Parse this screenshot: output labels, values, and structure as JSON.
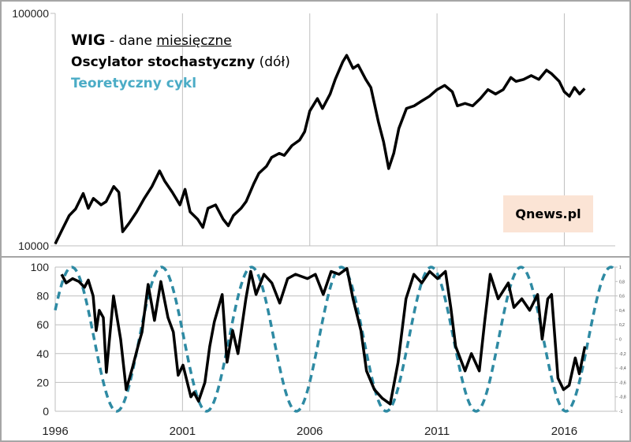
{
  "chart_data": [
    {
      "type": "line",
      "panel": "top",
      "yscale": "log",
      "ylim": [
        10000,
        100000
      ],
      "xlim": [
        1996,
        2018
      ],
      "yticks": [
        "10000",
        "100000"
      ],
      "grid": "vertical",
      "legend": {
        "line1_bold": "WIG",
        "line1_rest": " - dane ",
        "line1_underlined": "miesięczne",
        "line2_bold": "Oscylator stochastyczny",
        "line2_rest": " (dół)",
        "line3": "Teoretyczny cykl"
      },
      "watermark": "Qnews.pl",
      "colors": {
        "wig": "#000000",
        "cycle": "#2e8aa3",
        "cycle_legend": "#4bacc6",
        "watermark_bg": "#fbe4d5"
      },
      "series": [
        {
          "values": [
            [
              1996.0,
              10200
            ],
            [
              1996.3,
              11900
            ],
            [
              1996.55,
              13500
            ],
            [
              1996.8,
              14400
            ],
            [
              1997.1,
              16800
            ],
            [
              1997.3,
              14500
            ],
            [
              1997.5,
              16000
            ],
            [
              1997.8,
              15000
            ],
            [
              1998.0,
              15500
            ],
            [
              1998.3,
              18000
            ],
            [
              1998.5,
              17000
            ],
            [
              1998.65,
              11500
            ],
            [
              1998.9,
              12500
            ],
            [
              1999.2,
              14000
            ],
            [
              1999.5,
              16000
            ],
            [
              1999.8,
              18000
            ],
            [
              2000.1,
              21000
            ],
            [
              2000.3,
              19000
            ],
            [
              2000.6,
              17000
            ],
            [
              2000.9,
              15000
            ],
            [
              2001.1,
              17500
            ],
            [
              2001.3,
              14000
            ],
            [
              2001.6,
              13000
            ],
            [
              2001.8,
              12000
            ],
            [
              2002.0,
              14500
            ],
            [
              2002.3,
              15000
            ],
            [
              2002.6,
              13000
            ],
            [
              2002.8,
              12200
            ],
            [
              2003.0,
              13500
            ],
            [
              2003.3,
              14500
            ],
            [
              2003.5,
              15500
            ],
            [
              2003.8,
              18500
            ],
            [
              2004.0,
              20500
            ],
            [
              2004.3,
              22000
            ],
            [
              2004.5,
              24000
            ],
            [
              2004.8,
              25000
            ],
            [
              2005.0,
              24500
            ],
            [
              2005.3,
              27000
            ],
            [
              2005.6,
              28500
            ],
            [
              2005.8,
              31000
            ],
            [
              2006.0,
              38000
            ],
            [
              2006.3,
              43000
            ],
            [
              2006.5,
              39000
            ],
            [
              2006.8,
              45000
            ],
            [
              2007.0,
              52000
            ],
            [
              2007.3,
              62000
            ],
            [
              2007.45,
              66000
            ],
            [
              2007.7,
              58000
            ],
            [
              2007.9,
              60000
            ],
            [
              2008.2,
              52000
            ],
            [
              2008.4,
              48000
            ],
            [
              2008.7,
              34000
            ],
            [
              2008.9,
              28000
            ],
            [
              2009.1,
              21500
            ],
            [
              2009.3,
              25000
            ],
            [
              2009.5,
              32000
            ],
            [
              2009.8,
              39000
            ],
            [
              2010.1,
              40000
            ],
            [
              2010.4,
              42000
            ],
            [
              2010.7,
              44000
            ],
            [
              2011.0,
              47000
            ],
            [
              2011.3,
              49000
            ],
            [
              2011.6,
              46000
            ],
            [
              2011.8,
              40000
            ],
            [
              2012.1,
              41000
            ],
            [
              2012.4,
              40000
            ],
            [
              2012.7,
              43000
            ],
            [
              2013.0,
              47000
            ],
            [
              2013.3,
              45000
            ],
            [
              2013.6,
              47000
            ],
            [
              2013.9,
              53000
            ],
            [
              2014.1,
              51000
            ],
            [
              2014.4,
              52000
            ],
            [
              2014.7,
              54000
            ],
            [
              2015.0,
              52000
            ],
            [
              2015.3,
              57000
            ],
            [
              2015.5,
              55000
            ],
            [
              2015.8,
              51000
            ],
            [
              2016.0,
              46000
            ],
            [
              2016.2,
              44000
            ],
            [
              2016.4,
              48000
            ],
            [
              2016.6,
              45000
            ],
            [
              2016.8,
              47500
            ]
          ]
        }
      ]
    },
    {
      "type": "line",
      "panel": "bottom",
      "ylim": [
        0,
        100
      ],
      "y2lim": [
        -1,
        1
      ],
      "xlim": [
        1996,
        2018
      ],
      "xticks": [
        "1996",
        "2001",
        "2006",
        "2011",
        "2016"
      ],
      "yticks": [
        "0",
        "20",
        "40",
        "60",
        "80",
        "100"
      ],
      "y2ticks": [
        "-1",
        "-0,8",
        "-0,6",
        "-0,4",
        "-0,2",
        "0",
        "0,2",
        "0,4",
        "0,6",
        "0,8",
        "1"
      ],
      "grid": "both",
      "series": [
        {
          "values": [
            [
              1996.25,
              95
            ],
            [
              1996.43,
              89
            ],
            [
              1996.68,
              92
            ],
            [
              1996.93,
              90
            ],
            [
              1997.15,
              86
            ],
            [
              1997.3,
              91
            ],
            [
              1997.49,
              80
            ],
            [
              1997.61,
              56
            ],
            [
              1997.73,
              70
            ],
            [
              1997.89,
              65
            ],
            [
              1998.01,
              27
            ],
            [
              1998.29,
              80
            ],
            [
              1998.57,
              50
            ],
            [
              1998.79,
              15
            ],
            [
              1999.03,
              30
            ],
            [
              1999.25,
              45
            ],
            [
              1999.41,
              55
            ],
            [
              1999.65,
              88
            ],
            [
              1999.9,
              63
            ],
            [
              2000.15,
              90
            ],
            [
              2000.43,
              65
            ],
            [
              2000.64,
              55
            ],
            [
              2000.83,
              25
            ],
            [
              2001.02,
              32
            ],
            [
              2001.33,
              10
            ],
            [
              2001.45,
              13
            ],
            [
              2001.63,
              7
            ],
            [
              2001.88,
              20
            ],
            [
              2002.07,
              45
            ],
            [
              2002.25,
              62
            ],
            [
              2002.56,
              81
            ],
            [
              2002.75,
              34
            ],
            [
              2002.97,
              56
            ],
            [
              2003.18,
              40
            ],
            [
              2003.49,
              78
            ],
            [
              2003.68,
              97
            ],
            [
              2003.89,
              81
            ],
            [
              2004.2,
              95
            ],
            [
              2004.51,
              89
            ],
            [
              2004.82,
              75
            ],
            [
              2005.13,
              92
            ],
            [
              2005.44,
              95
            ],
            [
              2005.91,
              92
            ],
            [
              2006.22,
              95
            ],
            [
              2006.53,
              81
            ],
            [
              2006.84,
              97
            ],
            [
              2007.15,
              95
            ],
            [
              2007.46,
              99
            ],
            [
              2007.7,
              78
            ],
            [
              2008.01,
              56
            ],
            [
              2008.23,
              28
            ],
            [
              2008.54,
              15
            ],
            [
              2008.85,
              9
            ],
            [
              2009.16,
              5
            ],
            [
              2009.47,
              34
            ],
            [
              2009.78,
              78
            ],
            [
              2010.09,
              95
            ],
            [
              2010.4,
              89
            ],
            [
              2010.71,
              97
            ],
            [
              2011.02,
              92
            ],
            [
              2011.33,
              97
            ],
            [
              2011.54,
              72
            ],
            [
              2011.73,
              45
            ],
            [
              2012.1,
              28
            ],
            [
              2012.35,
              40
            ],
            [
              2012.66,
              28
            ],
            [
              2012.87,
              62
            ],
            [
              2013.09,
              95
            ],
            [
              2013.4,
              78
            ],
            [
              2013.8,
              89
            ],
            [
              2014.02,
              72
            ],
            [
              2014.33,
              78
            ],
            [
              2014.64,
              70
            ],
            [
              2014.95,
              81
            ],
            [
              2015.13,
              50
            ],
            [
              2015.35,
              78
            ],
            [
              2015.5,
              81
            ],
            [
              2015.75,
              23
            ],
            [
              2015.97,
              15
            ],
            [
              2016.19,
              18
            ],
            [
              2016.43,
              37
            ],
            [
              2016.59,
              26
            ],
            [
              2016.81,
              45
            ]
          ]
        },
        {
          "axis": "right",
          "style": "dashed",
          "function": "cosine",
          "amplitude": 1,
          "period_years": 3.53,
          "peak_year": 1996.65
        }
      ]
    }
  ]
}
